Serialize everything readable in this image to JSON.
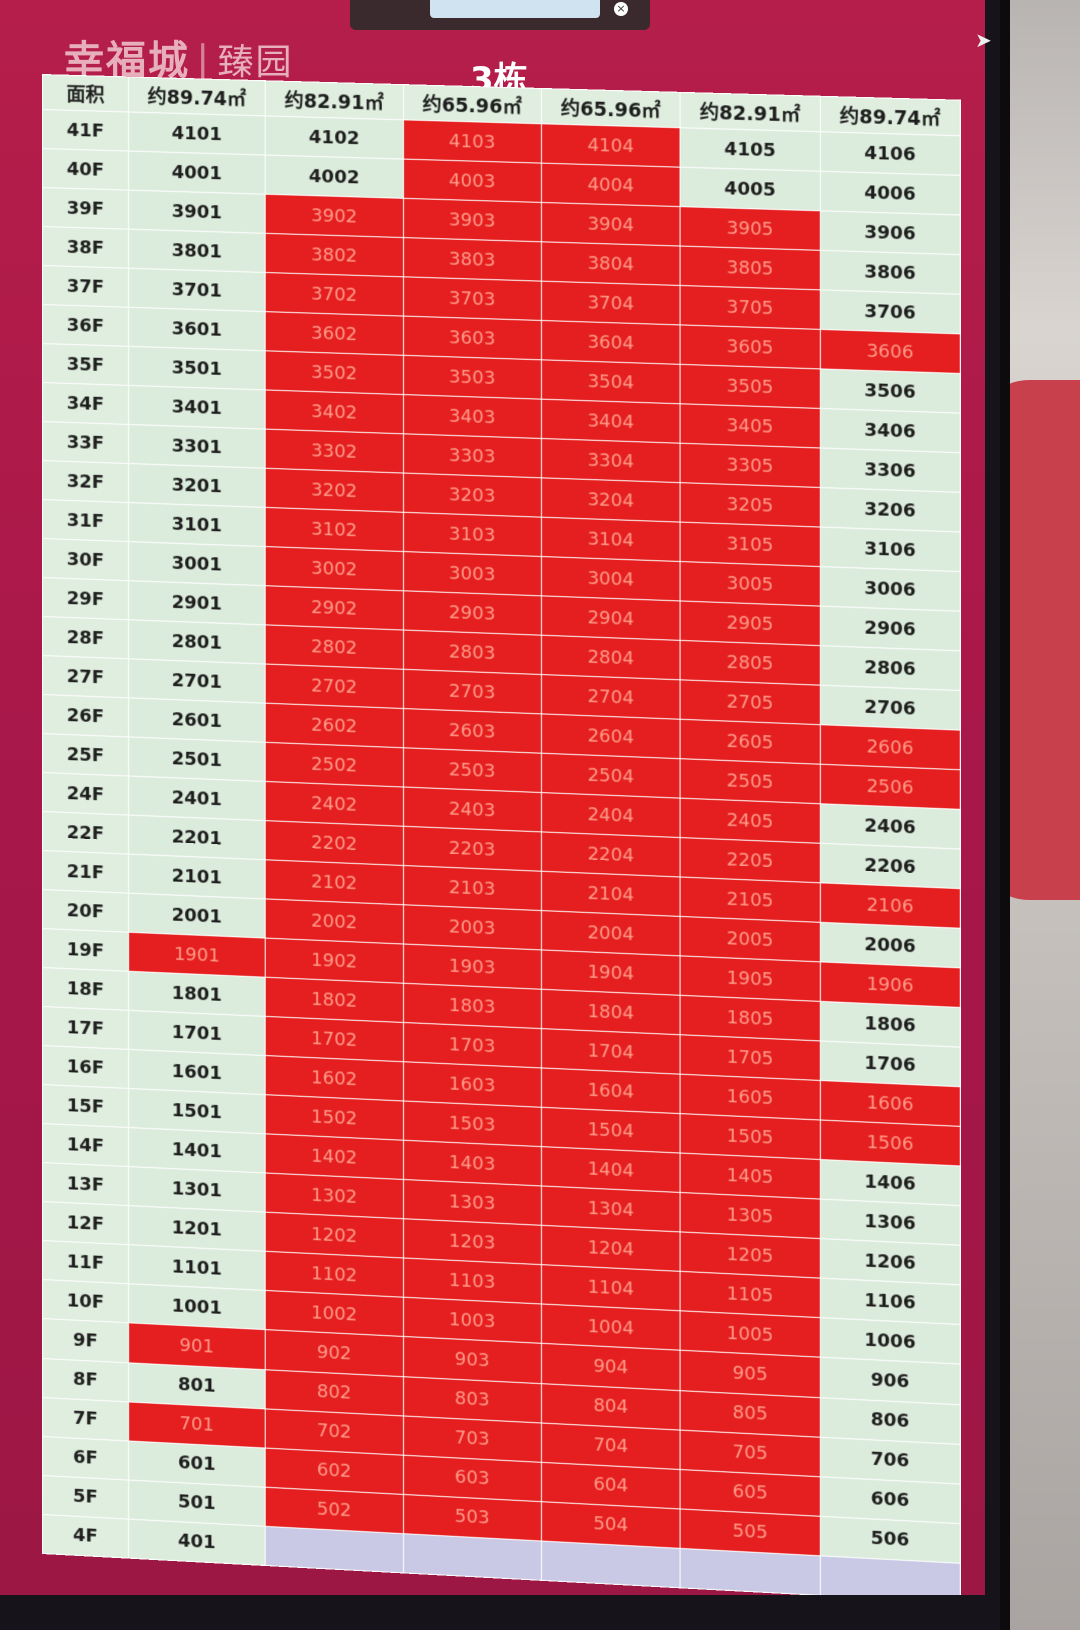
{
  "logo": {
    "main": "幸福城",
    "separator": "|",
    "sub": "臻园"
  },
  "building_title": "3栋",
  "table": {
    "headers": [
      "面积",
      "约89.74㎡",
      "约82.91㎡",
      "约65.96㎡",
      "约65.96㎡",
      "约82.91㎡",
      "约89.74㎡"
    ],
    "rows": [
      {
        "floor": "41F",
        "units": [
          [
            "4101",
            "a"
          ],
          [
            "4102",
            "a"
          ],
          [
            "4103",
            "s"
          ],
          [
            "4104",
            "s"
          ],
          [
            "4105",
            "a"
          ],
          [
            "4106",
            "a"
          ]
        ]
      },
      {
        "floor": "40F",
        "units": [
          [
            "4001",
            "a"
          ],
          [
            "4002",
            "a"
          ],
          [
            "4003",
            "s"
          ],
          [
            "4004",
            "s"
          ],
          [
            "4005",
            "a"
          ],
          [
            "4006",
            "a"
          ]
        ]
      },
      {
        "floor": "39F",
        "units": [
          [
            "3901",
            "a"
          ],
          [
            "3902",
            "s"
          ],
          [
            "3903",
            "s"
          ],
          [
            "3904",
            "s"
          ],
          [
            "3905",
            "s"
          ],
          [
            "3906",
            "a"
          ]
        ]
      },
      {
        "floor": "38F",
        "units": [
          [
            "3801",
            "a"
          ],
          [
            "3802",
            "s"
          ],
          [
            "3803",
            "s"
          ],
          [
            "3804",
            "s"
          ],
          [
            "3805",
            "s"
          ],
          [
            "3806",
            "a"
          ]
        ]
      },
      {
        "floor": "37F",
        "units": [
          [
            "3701",
            "a"
          ],
          [
            "3702",
            "s"
          ],
          [
            "3703",
            "s"
          ],
          [
            "3704",
            "s"
          ],
          [
            "3705",
            "s"
          ],
          [
            "3706",
            "a"
          ]
        ]
      },
      {
        "floor": "36F",
        "units": [
          [
            "3601",
            "a"
          ],
          [
            "3602",
            "s"
          ],
          [
            "3603",
            "s"
          ],
          [
            "3604",
            "s"
          ],
          [
            "3605",
            "s"
          ],
          [
            "3606",
            "s"
          ]
        ]
      },
      {
        "floor": "35F",
        "units": [
          [
            "3501",
            "a"
          ],
          [
            "3502",
            "s"
          ],
          [
            "3503",
            "s"
          ],
          [
            "3504",
            "s"
          ],
          [
            "3505",
            "s"
          ],
          [
            "3506",
            "a"
          ]
        ]
      },
      {
        "floor": "34F",
        "units": [
          [
            "3401",
            "a"
          ],
          [
            "3402",
            "s"
          ],
          [
            "3403",
            "s"
          ],
          [
            "3404",
            "s"
          ],
          [
            "3405",
            "s"
          ],
          [
            "3406",
            "a"
          ]
        ]
      },
      {
        "floor": "33F",
        "units": [
          [
            "3301",
            "a"
          ],
          [
            "3302",
            "s"
          ],
          [
            "3303",
            "s"
          ],
          [
            "3304",
            "s"
          ],
          [
            "3305",
            "s"
          ],
          [
            "3306",
            "a"
          ]
        ]
      },
      {
        "floor": "32F",
        "units": [
          [
            "3201",
            "a"
          ],
          [
            "3202",
            "s"
          ],
          [
            "3203",
            "s"
          ],
          [
            "3204",
            "s"
          ],
          [
            "3205",
            "s"
          ],
          [
            "3206",
            "a"
          ]
        ]
      },
      {
        "floor": "31F",
        "units": [
          [
            "3101",
            "a"
          ],
          [
            "3102",
            "s"
          ],
          [
            "3103",
            "s"
          ],
          [
            "3104",
            "s"
          ],
          [
            "3105",
            "s"
          ],
          [
            "3106",
            "a"
          ]
        ]
      },
      {
        "floor": "30F",
        "units": [
          [
            "3001",
            "a"
          ],
          [
            "3002",
            "s"
          ],
          [
            "3003",
            "s"
          ],
          [
            "3004",
            "s"
          ],
          [
            "3005",
            "s"
          ],
          [
            "3006",
            "a"
          ]
        ]
      },
      {
        "floor": "29F",
        "units": [
          [
            "2901",
            "a"
          ],
          [
            "2902",
            "s"
          ],
          [
            "2903",
            "s"
          ],
          [
            "2904",
            "s"
          ],
          [
            "2905",
            "s"
          ],
          [
            "2906",
            "a"
          ]
        ]
      },
      {
        "floor": "28F",
        "units": [
          [
            "2801",
            "a"
          ],
          [
            "2802",
            "s"
          ],
          [
            "2803",
            "s"
          ],
          [
            "2804",
            "s"
          ],
          [
            "2805",
            "s"
          ],
          [
            "2806",
            "a"
          ]
        ]
      },
      {
        "floor": "27F",
        "units": [
          [
            "2701",
            "a"
          ],
          [
            "2702",
            "s"
          ],
          [
            "2703",
            "s"
          ],
          [
            "2704",
            "s"
          ],
          [
            "2705",
            "s"
          ],
          [
            "2706",
            "a"
          ]
        ]
      },
      {
        "floor": "26F",
        "units": [
          [
            "2601",
            "a"
          ],
          [
            "2602",
            "s"
          ],
          [
            "2603",
            "s"
          ],
          [
            "2604",
            "s"
          ],
          [
            "2605",
            "s"
          ],
          [
            "2606",
            "s"
          ]
        ]
      },
      {
        "floor": "25F",
        "units": [
          [
            "2501",
            "a"
          ],
          [
            "2502",
            "s"
          ],
          [
            "2503",
            "s"
          ],
          [
            "2504",
            "s"
          ],
          [
            "2505",
            "s"
          ],
          [
            "2506",
            "s"
          ]
        ]
      },
      {
        "floor": "24F",
        "units": [
          [
            "2401",
            "a"
          ],
          [
            "2402",
            "s"
          ],
          [
            "2403",
            "s"
          ],
          [
            "2404",
            "s"
          ],
          [
            "2405",
            "s"
          ],
          [
            "2406",
            "a"
          ]
        ]
      },
      {
        "floor": "22F",
        "units": [
          [
            "2201",
            "a"
          ],
          [
            "2202",
            "s"
          ],
          [
            "2203",
            "s"
          ],
          [
            "2204",
            "s"
          ],
          [
            "2205",
            "s"
          ],
          [
            "2206",
            "a"
          ]
        ]
      },
      {
        "floor": "21F",
        "units": [
          [
            "2101",
            "a"
          ],
          [
            "2102",
            "s"
          ],
          [
            "2103",
            "s"
          ],
          [
            "2104",
            "s"
          ],
          [
            "2105",
            "s"
          ],
          [
            "2106",
            "s"
          ]
        ]
      },
      {
        "floor": "20F",
        "units": [
          [
            "2001",
            "a"
          ],
          [
            "2002",
            "s"
          ],
          [
            "2003",
            "s"
          ],
          [
            "2004",
            "s"
          ],
          [
            "2005",
            "s"
          ],
          [
            "2006",
            "a"
          ]
        ]
      },
      {
        "floor": "19F",
        "units": [
          [
            "1901",
            "s"
          ],
          [
            "1902",
            "s"
          ],
          [
            "1903",
            "s"
          ],
          [
            "1904",
            "s"
          ],
          [
            "1905",
            "s"
          ],
          [
            "1906",
            "s"
          ]
        ]
      },
      {
        "floor": "18F",
        "units": [
          [
            "1801",
            "a"
          ],
          [
            "1802",
            "s"
          ],
          [
            "1803",
            "s"
          ],
          [
            "1804",
            "s"
          ],
          [
            "1805",
            "s"
          ],
          [
            "1806",
            "a"
          ]
        ]
      },
      {
        "floor": "17F",
        "units": [
          [
            "1701",
            "a"
          ],
          [
            "1702",
            "s"
          ],
          [
            "1703",
            "s"
          ],
          [
            "1704",
            "s"
          ],
          [
            "1705",
            "s"
          ],
          [
            "1706",
            "a"
          ]
        ]
      },
      {
        "floor": "16F",
        "units": [
          [
            "1601",
            "a"
          ],
          [
            "1602",
            "s"
          ],
          [
            "1603",
            "s"
          ],
          [
            "1604",
            "s"
          ],
          [
            "1605",
            "s"
          ],
          [
            "1606",
            "s"
          ]
        ]
      },
      {
        "floor": "15F",
        "units": [
          [
            "1501",
            "a"
          ],
          [
            "1502",
            "s"
          ],
          [
            "1503",
            "s"
          ],
          [
            "1504",
            "s"
          ],
          [
            "1505",
            "s"
          ],
          [
            "1506",
            "s"
          ]
        ]
      },
      {
        "floor": "14F",
        "units": [
          [
            "1401",
            "a"
          ],
          [
            "1402",
            "s"
          ],
          [
            "1403",
            "s"
          ],
          [
            "1404",
            "s"
          ],
          [
            "1405",
            "s"
          ],
          [
            "1406",
            "a"
          ]
        ]
      },
      {
        "floor": "13F",
        "units": [
          [
            "1301",
            "a"
          ],
          [
            "1302",
            "s"
          ],
          [
            "1303",
            "s"
          ],
          [
            "1304",
            "s"
          ],
          [
            "1305",
            "s"
          ],
          [
            "1306",
            "a"
          ]
        ]
      },
      {
        "floor": "12F",
        "units": [
          [
            "1201",
            "a"
          ],
          [
            "1202",
            "s"
          ],
          [
            "1203",
            "s"
          ],
          [
            "1204",
            "s"
          ],
          [
            "1205",
            "s"
          ],
          [
            "1206",
            "a"
          ]
        ]
      },
      {
        "floor": "11F",
        "units": [
          [
            "1101",
            "a"
          ],
          [
            "1102",
            "s"
          ],
          [
            "1103",
            "s"
          ],
          [
            "1104",
            "s"
          ],
          [
            "1105",
            "s"
          ],
          [
            "1106",
            "a"
          ]
        ]
      },
      {
        "floor": "10F",
        "units": [
          [
            "1001",
            "a"
          ],
          [
            "1002",
            "s"
          ],
          [
            "1003",
            "s"
          ],
          [
            "1004",
            "s"
          ],
          [
            "1005",
            "s"
          ],
          [
            "1006",
            "a"
          ]
        ]
      },
      {
        "floor": "9F",
        "units": [
          [
            "901",
            "s"
          ],
          [
            "902",
            "s"
          ],
          [
            "903",
            "s"
          ],
          [
            "904",
            "s"
          ],
          [
            "905",
            "s"
          ],
          [
            "906",
            "a"
          ]
        ]
      },
      {
        "floor": "8F",
        "units": [
          [
            "801",
            "a"
          ],
          [
            "802",
            "s"
          ],
          [
            "803",
            "s"
          ],
          [
            "804",
            "s"
          ],
          [
            "805",
            "s"
          ],
          [
            "806",
            "a"
          ]
        ]
      },
      {
        "floor": "7F",
        "units": [
          [
            "701",
            "s"
          ],
          [
            "702",
            "s"
          ],
          [
            "703",
            "s"
          ],
          [
            "704",
            "s"
          ],
          [
            "705",
            "s"
          ],
          [
            "706",
            "a"
          ]
        ]
      },
      {
        "floor": "6F",
        "units": [
          [
            "601",
            "a"
          ],
          [
            "602",
            "s"
          ],
          [
            "603",
            "s"
          ],
          [
            "604",
            "s"
          ],
          [
            "605",
            "s"
          ],
          [
            "606",
            "a"
          ]
        ]
      },
      {
        "floor": "5F",
        "units": [
          [
            "501",
            "a"
          ],
          [
            "502",
            "s"
          ],
          [
            "503",
            "s"
          ],
          [
            "504",
            "s"
          ],
          [
            "505",
            "s"
          ],
          [
            "506",
            "a"
          ]
        ]
      },
      {
        "floor": "4F",
        "units": [
          [
            "401",
            "a"
          ],
          [
            "",
            "e"
          ],
          [
            "",
            "e"
          ],
          [
            "",
            "e"
          ],
          [
            "",
            "e"
          ],
          [
            "",
            "e"
          ]
        ]
      }
    ]
  },
  "colors": {
    "sold": "#e51f1f",
    "available": "#dcecdc",
    "empty": "#c9c9e5",
    "screen_bg": "#b51e4a"
  },
  "icons": {
    "close": "close-icon",
    "cursor": "mouse-cursor-icon"
  }
}
